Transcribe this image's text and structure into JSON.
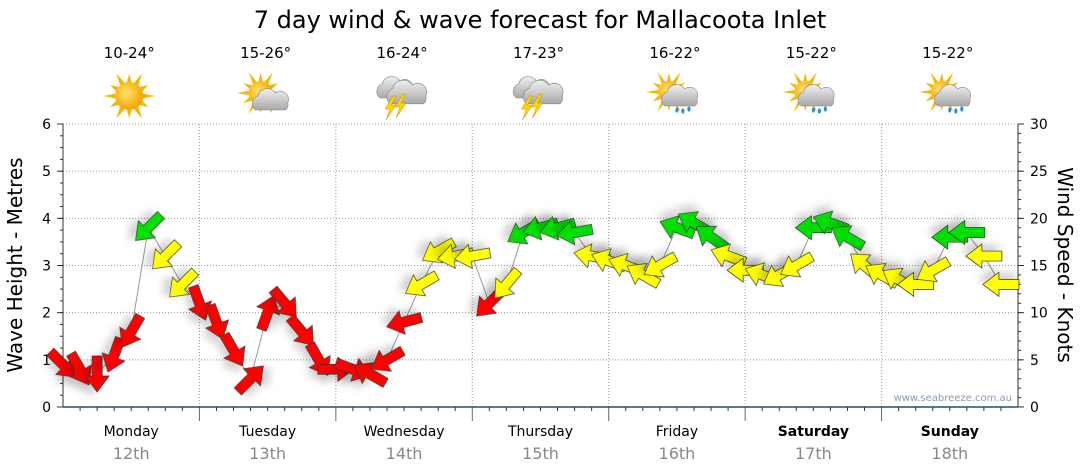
{
  "chart_data": {
    "type": "scatter",
    "title": "7 day wind & wave forecast for Mallacoota Inlet",
    "ylabel_left": "Wave Height - Metres",
    "ylabel_right": "Wind Speed - Knots",
    "ylim_left": [
      0,
      6
    ],
    "ylim_right": [
      0,
      30
    ],
    "yticks_left": [
      "0",
      "1",
      "2",
      "3",
      "4",
      "5",
      "6"
    ],
    "yticks_right": [
      "0",
      "5",
      "10",
      "15",
      "20",
      "25",
      "30"
    ],
    "grid": true,
    "watermark": "www.seabreeze.com.au",
    "days": [
      {
        "name": "Monday",
        "date": "12th",
        "temp": "10-24°",
        "icon": "sunny-icon",
        "bold": false
      },
      {
        "name": "Tuesday",
        "date": "13th",
        "temp": "15-26°",
        "icon": "partly-cloudy-icon",
        "bold": false
      },
      {
        "name": "Wednesday",
        "date": "14th",
        "temp": "16-24°",
        "icon": "thunderstorm-icon",
        "bold": false
      },
      {
        "name": "Thursday",
        "date": "15th",
        "temp": "17-23°",
        "icon": "thunderstorm-icon",
        "bold": false
      },
      {
        "name": "Friday",
        "date": "16th",
        "temp": "16-22°",
        "icon": "sun-showers-icon",
        "bold": false
      },
      {
        "name": "Saturday",
        "date": "17th",
        "temp": "15-22°",
        "icon": "sun-showers-icon",
        "bold": true
      },
      {
        "name": "Sunday",
        "date": "18th",
        "temp": "15-22°",
        "icon": "sun-showers-icon",
        "bold": true
      }
    ],
    "color_scale": {
      "light": "#ff0000",
      "moderate": "#ffff00",
      "strong": "#00e000",
      "moderate_min_knots": 12,
      "strong_min_knots": 18
    },
    "wind_series": {
      "hour_step": 3,
      "knots": [
        4.5,
        4,
        3.5,
        5.5,
        8,
        19,
        16,
        13,
        11,
        9,
        6,
        3,
        10,
        11,
        8,
        5,
        4,
        4,
        3.5,
        5,
        9,
        13,
        16.5,
        16,
        16,
        11,
        13,
        18.5,
        19,
        19,
        18.5,
        16,
        15.5,
        15,
        14,
        15,
        19,
        19.5,
        18,
        16,
        14.5,
        14,
        14,
        15,
        19,
        19.5,
        18,
        15,
        14,
        13.5,
        13,
        14.5,
        18,
        18.5,
        16,
        13
      ],
      "direction_from_deg": [
        315,
        330,
        0,
        20,
        30,
        45,
        45,
        45,
        340,
        340,
        330,
        225,
        200,
        320,
        320,
        330,
        270,
        290,
        120,
        60,
        75,
        60,
        60,
        80,
        80,
        45,
        40,
        60,
        75,
        75,
        80,
        100,
        110,
        110,
        120,
        60,
        110,
        120,
        125,
        110,
        90,
        110,
        60,
        60,
        90,
        110,
        120,
        130,
        120,
        120,
        90,
        60,
        90,
        90,
        90,
        90
      ]
    }
  }
}
